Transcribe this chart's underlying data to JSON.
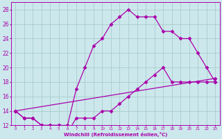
{
  "xlabel": "Windchill (Refroidissement éolien,°C)",
  "bg_color": "#cce8ec",
  "line_color": "#aa00aa",
  "grid_color": "#aacccc",
  "xlim": [
    -0.5,
    23.5
  ],
  "ylim": [
    12,
    29
  ],
  "xticks": [
    0,
    1,
    2,
    3,
    4,
    5,
    6,
    7,
    8,
    9,
    10,
    11,
    12,
    13,
    14,
    15,
    16,
    17,
    18,
    19,
    20,
    21,
    22,
    23
  ],
  "yticks": [
    12,
    14,
    16,
    18,
    20,
    22,
    24,
    26,
    28
  ],
  "line1_x": [
    0,
    1,
    2,
    3,
    4,
    5,
    6,
    7,
    8,
    9,
    10,
    11,
    12,
    13,
    14,
    15,
    16,
    17,
    18,
    19,
    20,
    21,
    22,
    23
  ],
  "line1_y": [
    14,
    13,
    13,
    12,
    12,
    12,
    12,
    17,
    20,
    23,
    24,
    26,
    27,
    28,
    27,
    27,
    27,
    25,
    25,
    24,
    24,
    22,
    20,
    18
  ],
  "line2_x": [
    0,
    1,
    2,
    3,
    4,
    5,
    6,
    7,
    8,
    9,
    10,
    11,
    12,
    13,
    14,
    15,
    16,
    17,
    18,
    19,
    20,
    21,
    22,
    23
  ],
  "line2_y": [
    14,
    13,
    13,
    12,
    12,
    12,
    11,
    13,
    13,
    13,
    14,
    14,
    15,
    16,
    17,
    18,
    19,
    20,
    18,
    18,
    18,
    18,
    18,
    18
  ],
  "line3_x": [
    0,
    23
  ],
  "line3_y": [
    14,
    18.5
  ]
}
